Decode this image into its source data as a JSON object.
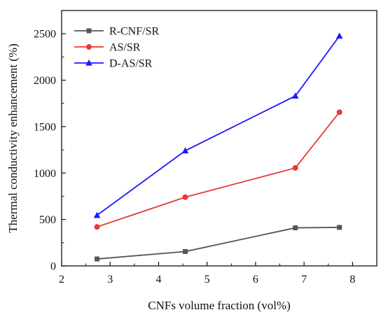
{
  "chart_data": {
    "type": "line",
    "xlabel": "CNFs volume fraction (vol%)",
    "ylabel": "Thermal conductivity enhancement (%)",
    "xlim": [
      2,
      8.5
    ],
    "ylim": [
      0,
      2750
    ],
    "xticks": [
      2,
      3,
      4,
      5,
      6,
      7,
      8
    ],
    "yticks": [
      0,
      500,
      1000,
      1500,
      2000,
      2500
    ],
    "x": [
      2.73,
      4.55,
      6.82,
      7.73
    ],
    "grid": false,
    "legend_position": "top-left",
    "series": [
      {
        "name": "R-CNF/SR",
        "color": "#555555",
        "marker": "square",
        "values": [
          75,
          155,
          410,
          415
        ]
      },
      {
        "name": "AS/SR",
        "color": "#e8393a",
        "marker": "circle",
        "values": [
          420,
          740,
          1055,
          1655
        ]
      },
      {
        "name": "D-AS/SR",
        "color": "#1a1aff",
        "marker": "triangle",
        "values": [
          545,
          1240,
          1830,
          2475
        ]
      }
    ]
  }
}
